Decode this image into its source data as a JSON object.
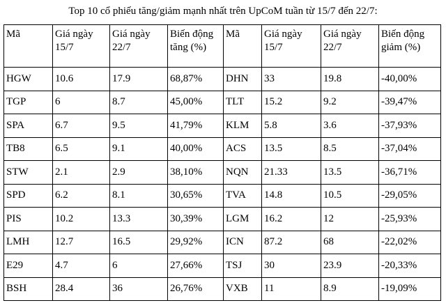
{
  "title": "Top 10 cổ phiếu tăng/giảm mạnh nhất trên UpCoM tuần từ 15/7 đến 22/7:",
  "table": {
    "header": [
      "Mã",
      "Giá ngày 15/7",
      "Giá ngày 22/7",
      "Biến động tăng (%)",
      "Mã",
      "Giá ngày 15/7",
      "Giá ngày 22/7",
      "Biến động giảm (%)"
    ],
    "rows": [
      [
        "HGW",
        "10.6",
        "17.9",
        "68,87%",
        "DHN",
        "33",
        "19.8",
        "-40,00%"
      ],
      [
        "TGP",
        "6",
        "8.7",
        "45,00%",
        "TLT",
        "15.2",
        "9.2",
        "-39,47%"
      ],
      [
        "SPA",
        "6.7",
        "9.5",
        "41,79%",
        "KLM",
        "5.8",
        "3.6",
        "-37,93%"
      ],
      [
        "TB8",
        "6.5",
        "9.1",
        "40,00%",
        "ACS",
        "13.5",
        "8.5",
        "-37,04%"
      ],
      [
        "STW",
        "2.1",
        "2.9",
        "38,10%",
        "NQN",
        "21.33",
        "13.5",
        "-36,71%"
      ],
      [
        "SPD",
        "6.2",
        "8.1",
        "30,65%",
        "TVA",
        "14.8",
        "10.5",
        "-29,05%"
      ],
      [
        "PIS",
        "10.2",
        "13.3",
        "30,39%",
        "LGM",
        "16.2",
        "12",
        "-25,93%"
      ],
      [
        "LMH",
        "12.7",
        "16.5",
        "29,92%",
        "ICN",
        "87.2",
        "68",
        "-22,02%"
      ],
      [
        "E29",
        "4.7",
        "6",
        "27,66%",
        "TSJ",
        "30",
        "23.9",
        "-20,33%"
      ],
      [
        "BSH",
        "28.4",
        "36",
        "26,76%",
        "VXB",
        "11",
        "8.9",
        "-19,09%"
      ]
    ]
  }
}
